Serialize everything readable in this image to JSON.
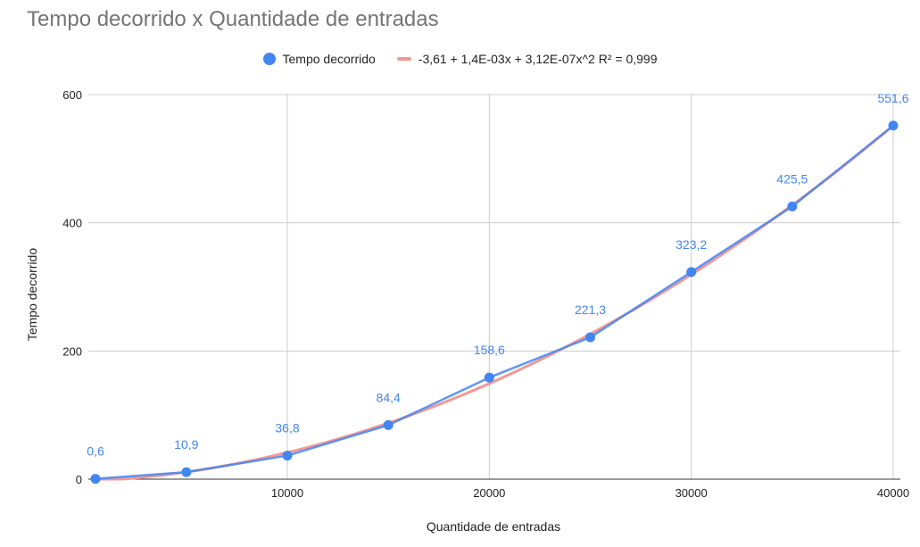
{
  "chart_data": {
    "type": "scatter",
    "title": "Tempo decorrido x Quantidade de entradas",
    "xlabel": "Quantidade de entradas",
    "ylabel": "Tempo decorrido",
    "xlim": [
      500,
      40000
    ],
    "ylim": [
      0,
      600
    ],
    "x_ticks": [
      10000,
      20000,
      30000,
      40000
    ],
    "y_ticks": [
      0,
      200,
      400,
      600
    ],
    "grid": true,
    "legend_position": "top",
    "series": [
      {
        "name": "Tempo decorrido",
        "color": "#4285F4",
        "mode": "lines+markers",
        "x": [
          500,
          5000,
          10000,
          15000,
          20000,
          25000,
          30000,
          35000,
          40000
        ],
        "y": [
          0.6,
          10.9,
          36.8,
          84.4,
          158.6,
          221.3,
          323.2,
          425.5,
          551.6
        ],
        "labels": [
          "0,6",
          "10,9",
          "36,8",
          "84,4",
          "158,6",
          "221,3",
          "323,2",
          "425,5",
          "551,6"
        ]
      }
    ],
    "trendline": {
      "name": "-3,61 + 1,4E-03x + 3,12E-07x^2 R² = 0,999",
      "color": "#F29895",
      "type": "polynomial",
      "coefficients": [
        -3.61,
        0.0014,
        3.12e-07
      ],
      "r2": 0.999
    }
  }
}
